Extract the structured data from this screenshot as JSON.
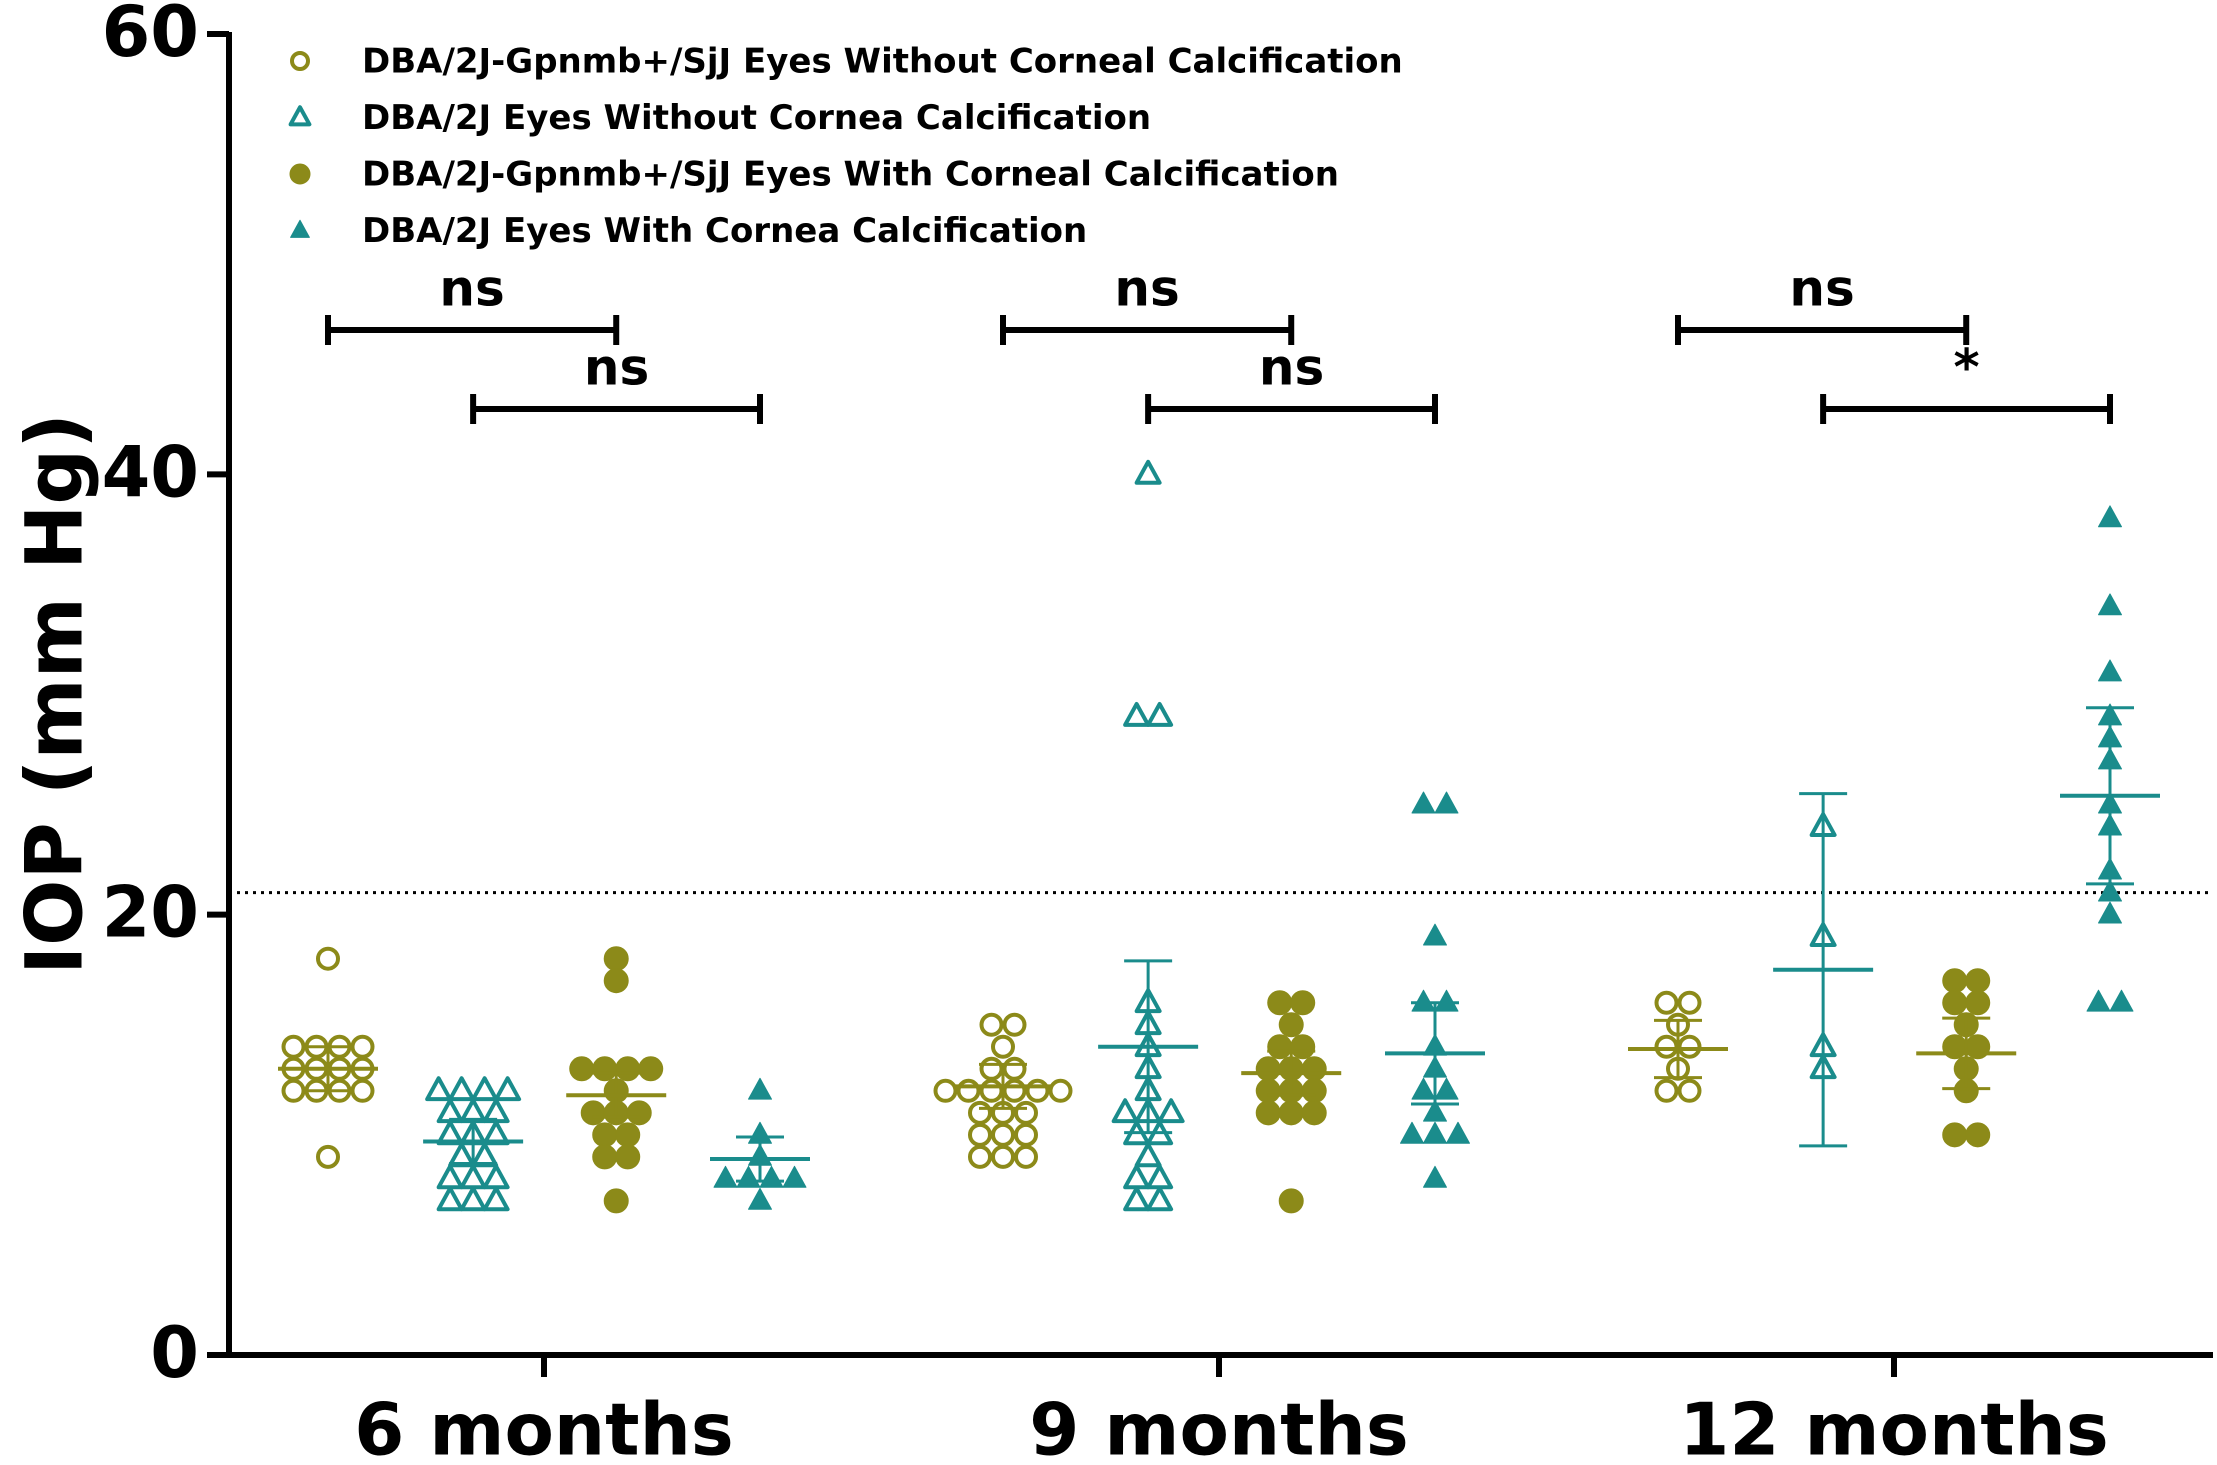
{
  "chart_data": {
    "type": "scatter",
    "y_label": "IOP (mm Hg)",
    "categories": [
      "6 months",
      "9 months",
      "12 months"
    ],
    "ylim": [
      0,
      60
    ],
    "yticks": [
      0,
      20,
      40,
      60
    ],
    "threshold": 21,
    "series": [
      {
        "name": "DBA/2J-Gpnmb+/SjJ Eyes Without Corneal Calcification",
        "color": "#8c8a19",
        "marker": "circle",
        "filled": false,
        "values": [
          [
            18,
            14,
            14,
            14,
            14,
            13,
            13,
            13,
            13,
            12,
            12,
            12,
            12,
            9
          ],
          [
            15,
            15,
            14,
            13,
            13,
            12,
            12,
            12,
            12,
            12,
            12,
            11,
            11,
            11,
            10,
            10,
            10,
            9,
            9,
            9
          ],
          [
            16,
            16,
            15,
            14,
            14,
            13,
            12,
            12
          ]
        ],
        "mean": [
          13,
          12.2,
          13.9
        ],
        "error": [
          1,
          1,
          1.3
        ]
      },
      {
        "name": "DBA/2J Eyes Without Cornea Calcification",
        "color": "#1a8c8c",
        "marker": "triangle",
        "filled": false,
        "values": [
          [
            12,
            12,
            12,
            12,
            11,
            11,
            11,
            10,
            10,
            10,
            9,
            9,
            8,
            8,
            8,
            7,
            7,
            7
          ],
          [
            40,
            29,
            29,
            16,
            15,
            14,
            13,
            12,
            11,
            11,
            11,
            10,
            10,
            9,
            8,
            8,
            7,
            7
          ],
          [
            24,
            19,
            14,
            13
          ]
        ],
        "mean": [
          9.7,
          14,
          17.5
        ],
        "error": [
          1,
          3.9,
          8
        ]
      },
      {
        "name": "DBA/2J-Gpnmb+/SjJ Eyes With Corneal Calcification",
        "color": "#8c8a19",
        "marker": "circle",
        "filled": true,
        "values": [
          [
            18,
            17,
            13,
            13,
            13,
            13,
            12,
            11,
            11,
            11,
            10,
            10,
            9,
            9,
            7
          ],
          [
            16,
            16,
            15,
            14,
            14,
            13,
            13,
            13,
            12,
            12,
            12,
            11,
            11,
            11,
            7
          ],
          [
            17,
            17,
            16,
            16,
            15,
            14,
            14,
            13,
            12,
            10,
            10
          ]
        ],
        "mean": [
          11.8,
          12.8,
          13.7
        ],
        "error": [
          1,
          1,
          1.6
        ]
      },
      {
        "name": "DBA/2J Eyes With Cornea Calcification",
        "color": "#1a8c8c",
        "marker": "triangle",
        "filled": true,
        "values": [
          [
            12,
            10,
            9,
            8,
            8,
            8,
            8,
            7
          ],
          [
            25,
            25,
            19,
            16,
            16,
            14,
            13,
            12,
            12,
            11,
            10,
            10,
            10,
            8
          ],
          [
            38,
            34,
            31,
            29,
            28,
            27,
            25,
            24,
            22,
            21,
            20,
            16,
            16
          ]
        ],
        "mean": [
          8.9,
          13.7,
          25.4
        ],
        "error": [
          1,
          2.3,
          4
        ]
      }
    ],
    "annotations": [
      [
        "ns",
        "ns"
      ],
      [
        "ns",
        "ns"
      ],
      [
        "ns",
        "*"
      ]
    ]
  }
}
